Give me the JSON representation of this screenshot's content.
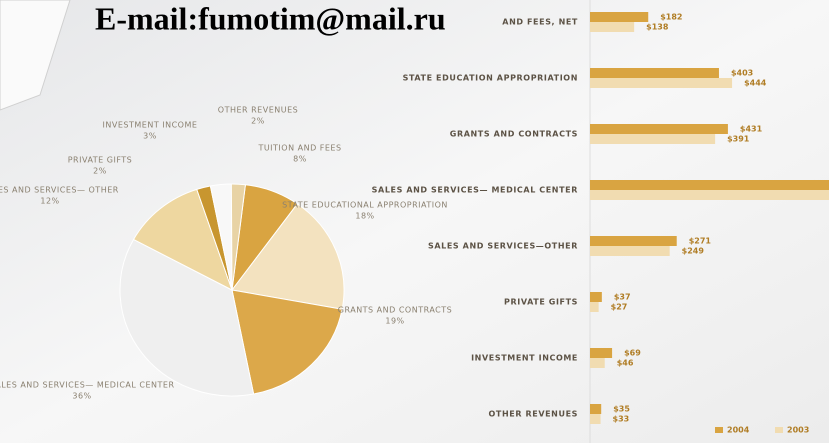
{
  "watermark": "E-mail:fumotim@mail.ru",
  "chart_data": [
    {
      "type": "pie",
      "categories": [
        "TUITION AND FEES",
        "STATE EDUCATIONAL APPROPRIATION",
        "GRANTS AND CONTRACTS",
        "SALES AND SERVICES— MEDICAL CENTER",
        "SALES AND SERVICES— OTHER",
        "PRIVATE GIFTS",
        "INVESTMENT INCOME",
        "OTHER REVENUES"
      ],
      "values": [
        8,
        18,
        19,
        36,
        12,
        2,
        3,
        2
      ],
      "value_labels": [
        "8%",
        "18%",
        "19%",
        "36%",
        "12%",
        "2%",
        "3%",
        "2%"
      ],
      "colors": [
        "#d9a441",
        "#f3e2bf",
        "#dca84a",
        "#efefef",
        "#eed7a0",
        "#c8962f",
        "#f8f8f8",
        "#e8d3a5"
      ]
    },
    {
      "type": "bar",
      "orientation": "horizontal",
      "categories": [
        "AND FEES, NET",
        "STATE EDUCATION APPROPRIATION",
        "GRANTS AND CONTRACTS",
        "SALES AND SERVICES— MEDICAL CENTER",
        "SALES AND SERVICES—OTHER",
        "PRIVATE GIFTS",
        "INVESTMENT INCOME",
        "OTHER REVENUES"
      ],
      "series": [
        {
          "name": "2004",
          "color": "#d9a441",
          "values": [
            182,
            403,
            431,
            780,
            271,
            37,
            69,
            35
          ],
          "value_labels": [
            "$182",
            "$403",
            "$431",
            null,
            "$271",
            "$37",
            "$69",
            "$35"
          ]
        },
        {
          "name": "2003",
          "color": "#f1dcb1",
          "values": [
            138,
            444,
            391,
            760,
            249,
            27,
            46,
            33
          ],
          "value_labels": [
            "$138",
            "$444",
            "$391",
            null,
            "$249",
            "$27",
            "$46",
            "$33"
          ]
        }
      ]
    }
  ]
}
